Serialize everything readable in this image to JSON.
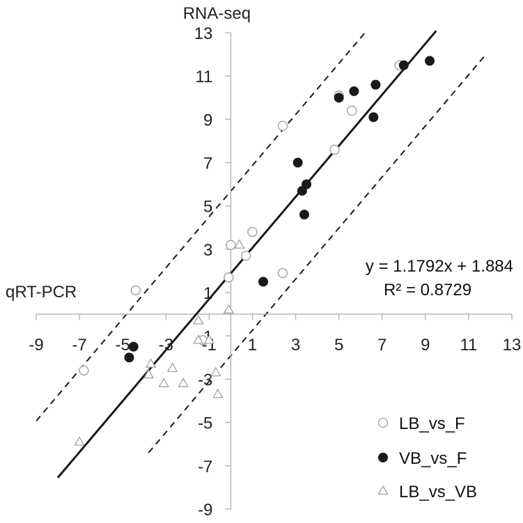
{
  "chart_data": {
    "type": "scatter",
    "title": "",
    "xlabel": "qRT-PCR",
    "ylabel": "RNA-seq",
    "xlim": [
      -9,
      13
    ],
    "ylim": [
      -9,
      13
    ],
    "x_ticks": [
      -9,
      -7,
      -5,
      -3,
      -1,
      1,
      3,
      5,
      7,
      9,
      11,
      13
    ],
    "y_ticks": [
      -9,
      -7,
      -5,
      -3,
      -1,
      1,
      3,
      5,
      7,
      9,
      11,
      13
    ],
    "x_tick_labels": [
      "-9",
      "-7",
      "-5",
      "-3",
      "-1",
      "1",
      "3",
      "5",
      "7",
      "9",
      "11",
      "13"
    ],
    "y_tick_labels": [
      "-9",
      "-7",
      "-5",
      "-3",
      "-1",
      "1",
      "3",
      "5",
      "7",
      "9",
      "11",
      "13"
    ],
    "grid": false,
    "legend_position": "bottom-right",
    "regression": {
      "slope": 1.1792,
      "intercept": 1.884,
      "equation": "y = 1.1792x + 1.884",
      "r2": "R² = 0.8729",
      "x_range": [
        -8.0,
        9.5
      ]
    },
    "prediction_band": {
      "offset": 3.8,
      "style": "dashed"
    },
    "series": [
      {
        "name": "LB_vs_F",
        "marker": "open-circle",
        "points": [
          [
            -4.4,
            1.1
          ],
          [
            -6.8,
            -2.6
          ],
          [
            -1.3,
            -1.2
          ],
          [
            -0.1,
            1.7
          ],
          [
            0.0,
            3.2
          ],
          [
            0.7,
            2.7
          ],
          [
            1.0,
            3.8
          ],
          [
            2.4,
            1.9
          ],
          [
            2.4,
            8.7
          ],
          [
            4.8,
            7.6
          ],
          [
            5.0,
            10.1
          ],
          [
            5.6,
            9.4
          ],
          [
            7.8,
            11.5
          ]
        ]
      },
      {
        "name": "VB_vs_F",
        "marker": "filled-circle",
        "points": [
          [
            -4.7,
            -2.0
          ],
          [
            -4.5,
            -1.5
          ],
          [
            1.5,
            1.5
          ],
          [
            3.1,
            7.0
          ],
          [
            3.3,
            5.7
          ],
          [
            3.4,
            4.6
          ],
          [
            3.5,
            6.0
          ],
          [
            5.0,
            10.0
          ],
          [
            5.7,
            10.3
          ],
          [
            6.6,
            9.1
          ],
          [
            6.7,
            10.6
          ],
          [
            8.0,
            11.5
          ],
          [
            9.2,
            11.7
          ]
        ]
      },
      {
        "name": "LB_vs_VB",
        "marker": "open-triangle",
        "points": [
          [
            -7.0,
            -5.9
          ],
          [
            -3.7,
            -2.3
          ],
          [
            -3.8,
            -2.8
          ],
          [
            -3.1,
            -3.2
          ],
          [
            -2.7,
            -2.5
          ],
          [
            -2.2,
            -3.2
          ],
          [
            -1.5,
            -0.3
          ],
          [
            -1.5,
            -1.2
          ],
          [
            -1.0,
            -1.2
          ],
          [
            -0.7,
            -2.7
          ],
          [
            -0.6,
            -3.7
          ],
          [
            -0.1,
            0.2
          ],
          [
            0.4,
            3.2
          ]
        ]
      }
    ],
    "colors": {
      "marker_fill": "#1a1a1a",
      "marker_stroke": "#9a9a9a",
      "axis": "#b5b5b5",
      "regression_line": "#1a1a1a"
    }
  }
}
